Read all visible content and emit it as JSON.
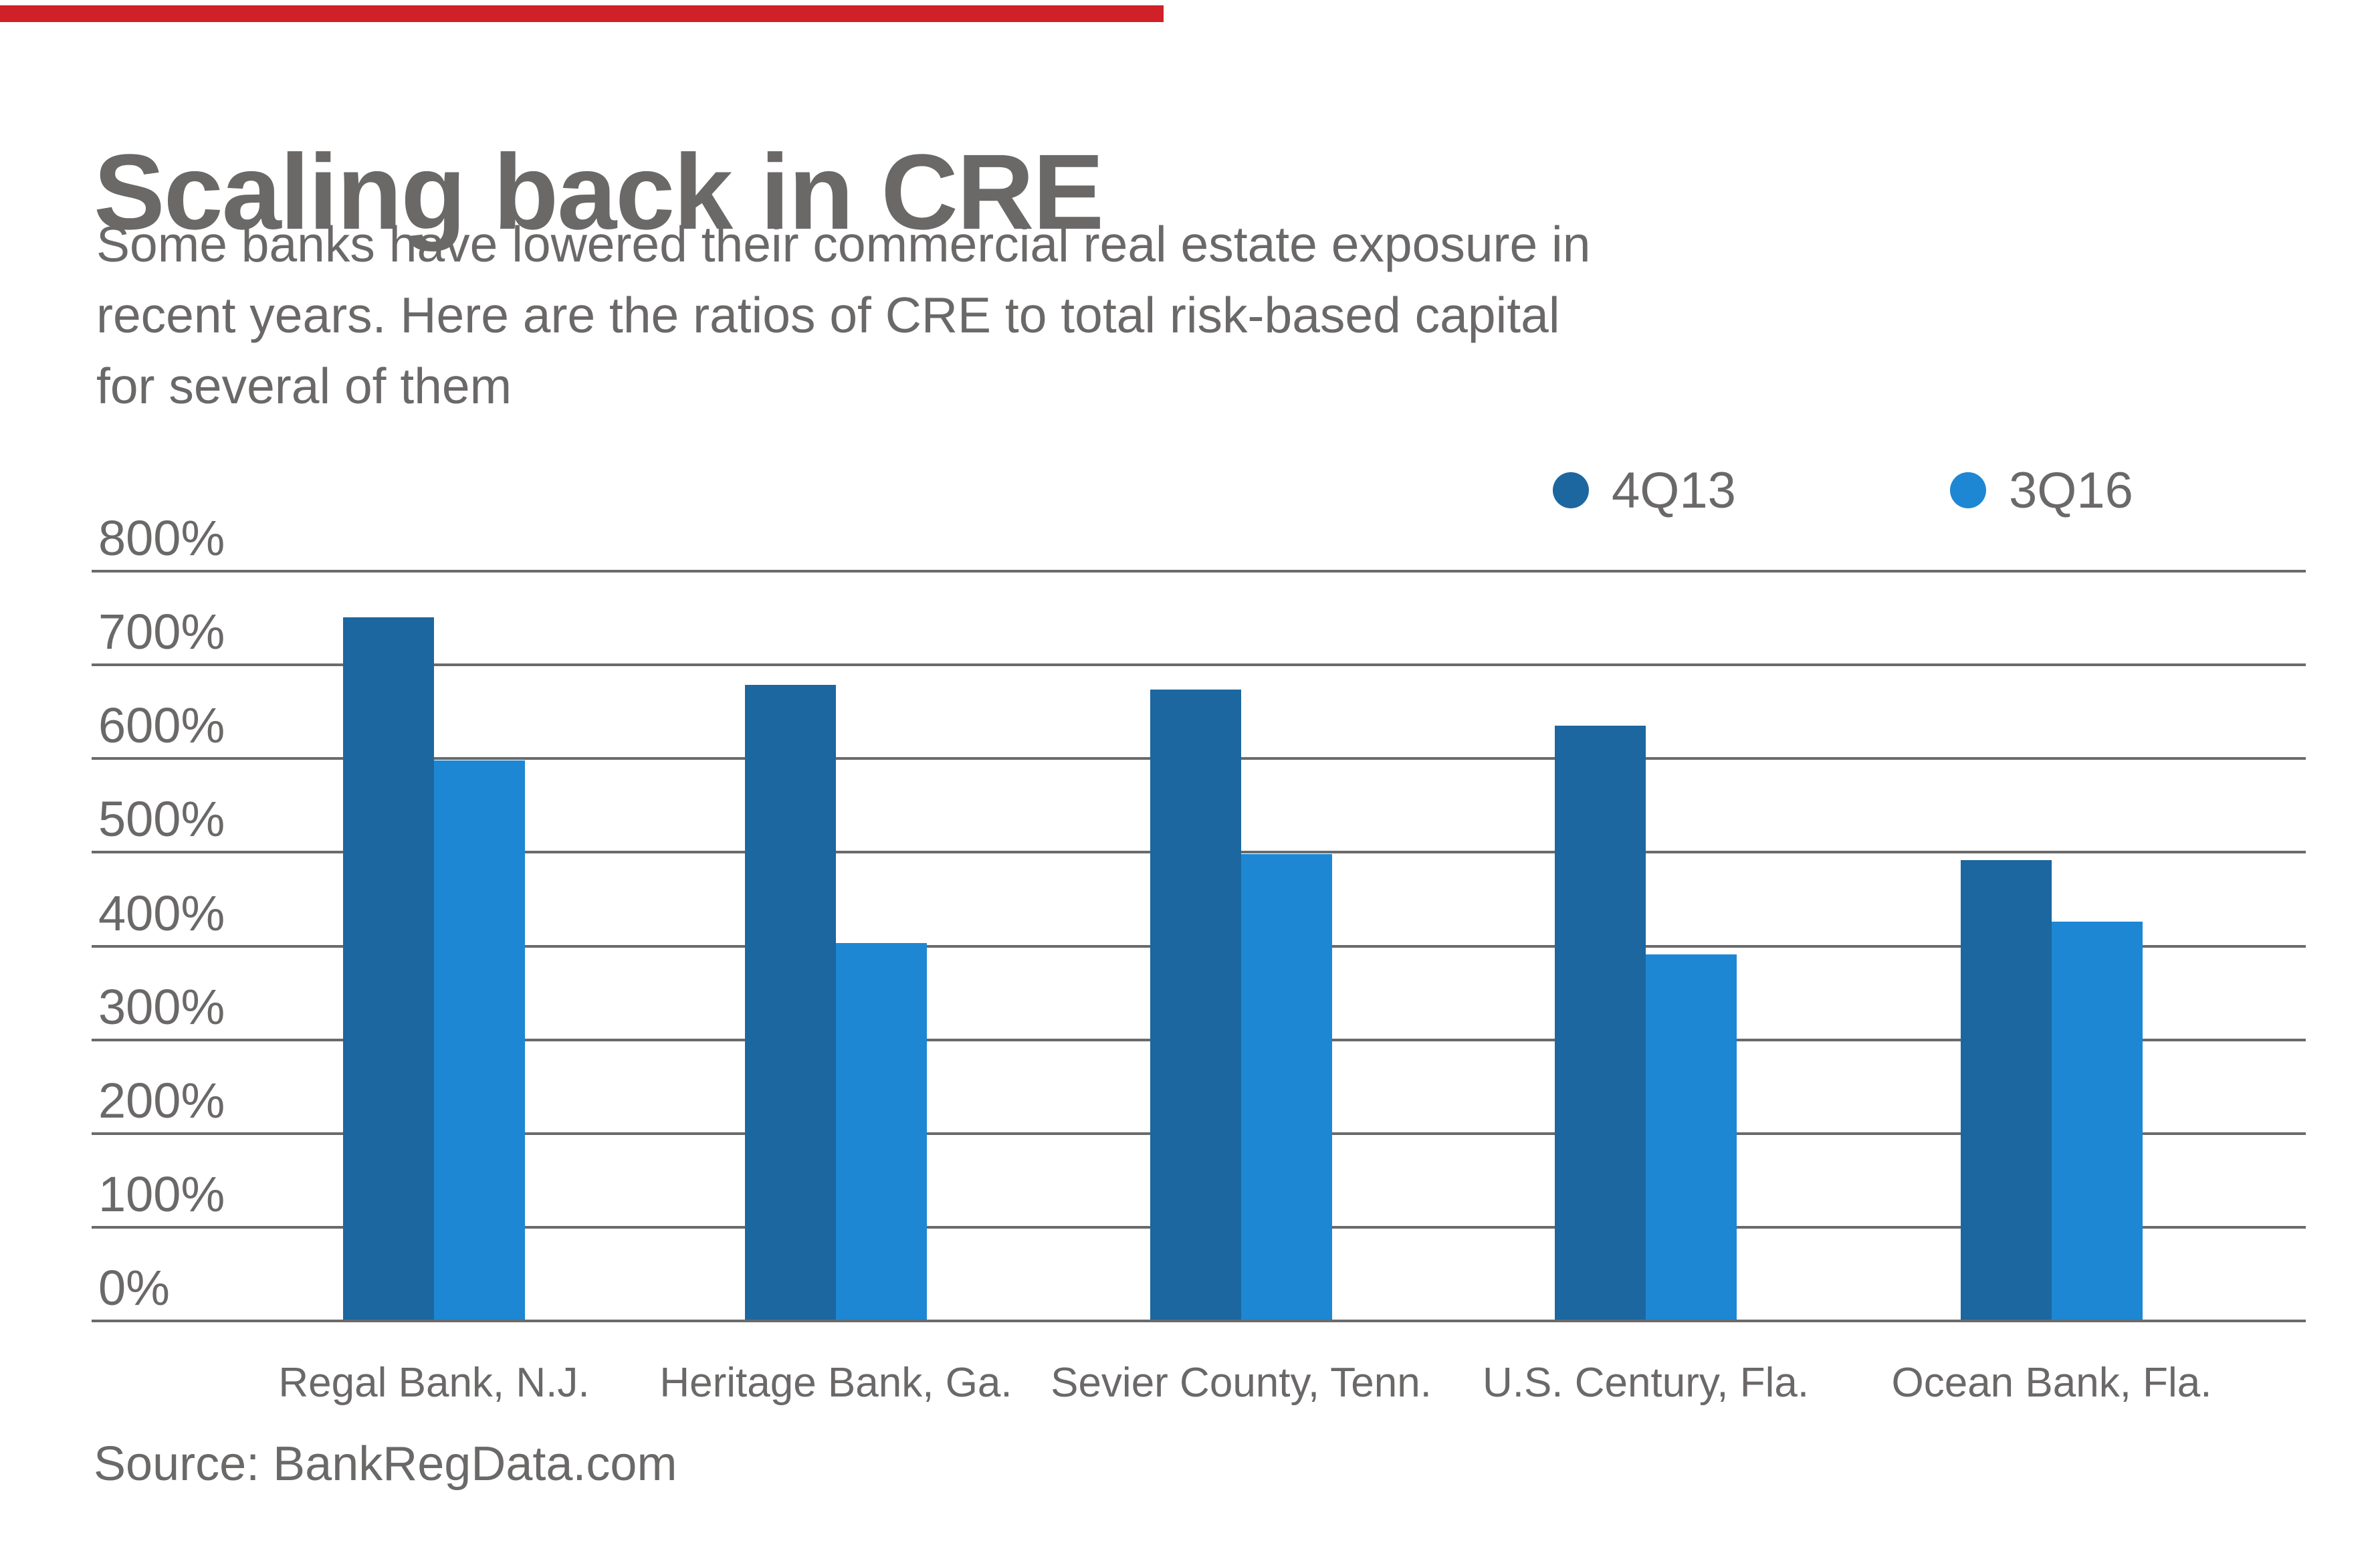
{
  "accent": {
    "color": "#cf2127"
  },
  "header": {
    "title": "Scaling back in CRE",
    "subtitle_lines": [
      "Some banks have lowered their commercial real estate exposure in",
      "recent years. Here are the ratios of CRE to total risk-based capital",
      "for several of them"
    ]
  },
  "legend": {
    "items": [
      {
        "label": "4Q13",
        "color": "#1c67a0"
      },
      {
        "label": "3Q16",
        "color": "#1e87d3"
      }
    ]
  },
  "source": "Source: BankRegData.com",
  "chart_data": {
    "type": "bar",
    "title": "Scaling back in CRE",
    "subtitle": "Some banks have lowered their commercial real estate exposure in recent years. Here are the ratios of CRE to total risk-based capital for several of them",
    "categories": [
      "Regal Bank, N.J.",
      "Heritage Bank, Ga.",
      "Sevier County, Tenn.",
      "U.S. Century, Fla.",
      "Ocean Bank, Fla."
    ],
    "series": [
      {
        "name": "4Q13",
        "color": "#1c67a0",
        "values": [
          751,
          679,
          674,
          635,
          492
        ]
      },
      {
        "name": "3Q16",
        "color": "#1e87d3",
        "values": [
          598,
          403,
          498,
          391,
          426
        ]
      }
    ],
    "unit": "%",
    "ylim": [
      0,
      800
    ],
    "y_tick_step": 100,
    "y_ticks": [
      "800%",
      "700%",
      "600%",
      "500%",
      "400%",
      "300%",
      "200%",
      "100%",
      "0%"
    ],
    "grid": true,
    "legend_position": "top-right",
    "source": "Source: BankRegData.com"
  }
}
